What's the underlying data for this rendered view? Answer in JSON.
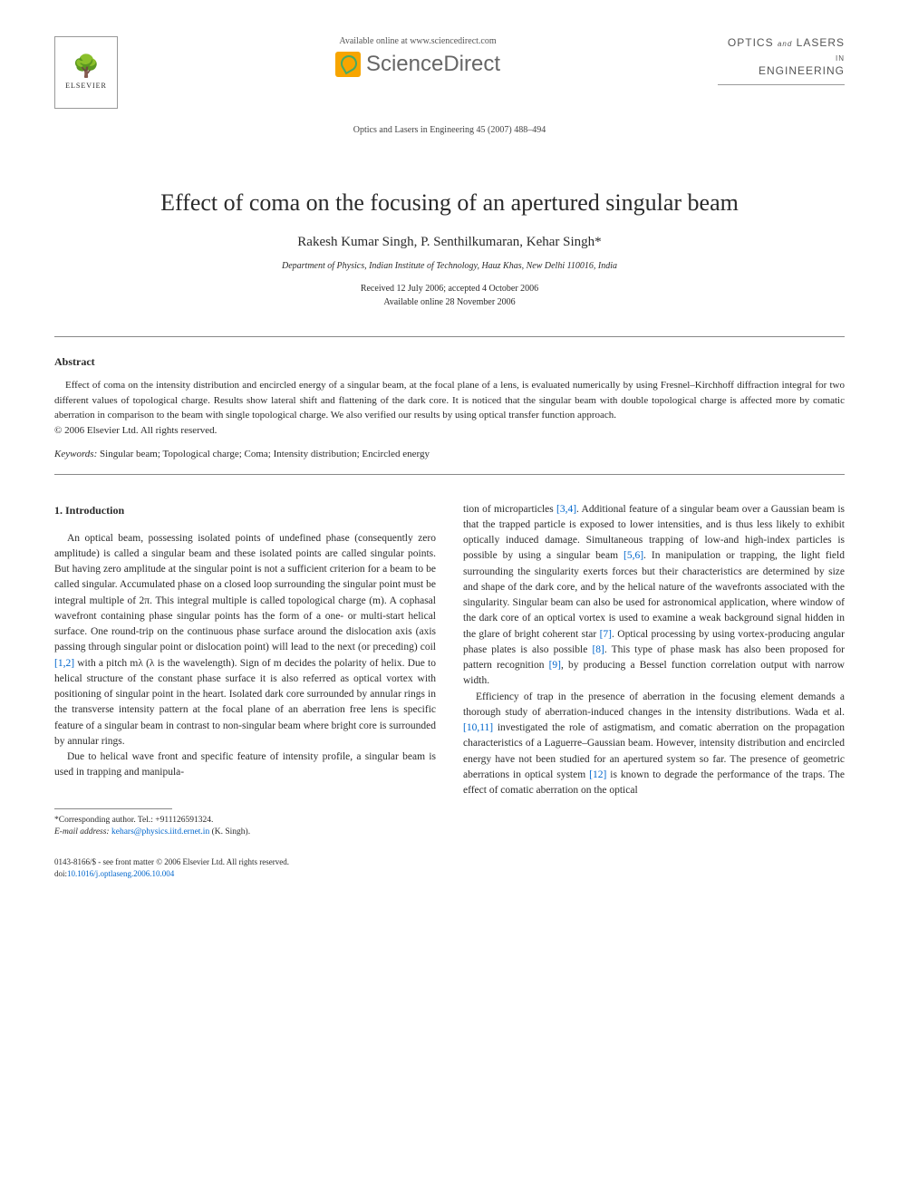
{
  "header": {
    "available_online": "Available online at www.sciencedirect.com",
    "sd_brand": "ScienceDirect",
    "elsevier_label": "ELSEVIER",
    "journal_name_line1": "OPTICS",
    "journal_name_and1": "and",
    "journal_name_line1b": "LASERS",
    "journal_name_line2": "ENGINEERING",
    "journal_ref": "Optics and Lasers in Engineering 45 (2007) 488–494"
  },
  "article": {
    "title": "Effect of coma on the focusing of an apertured singular beam",
    "authors": "Rakesh Kumar Singh, P. Senthilkumaran, Kehar Singh*",
    "affiliation": "Department of Physics, Indian Institute of Technology, Hauz Khas, New Delhi 110016, India",
    "received": "Received 12 July 2006; accepted 4 October 2006",
    "available": "Available online 28 November 2006"
  },
  "abstract": {
    "heading": "Abstract",
    "text": "Effect of coma on the intensity distribution and encircled energy of a singular beam, at the focal plane of a lens, is evaluated numerically by using Fresnel–Kirchhoff diffraction integral for two different values of topological charge. Results show lateral shift and flattening of the dark core. It is noticed that the singular beam with double topological charge is affected more by comatic aberration in comparison to the beam with single topological charge. We also verified our results by using optical transfer function approach.",
    "copyright": "© 2006 Elsevier Ltd. All rights reserved.",
    "keywords_label": "Keywords:",
    "keywords": " Singular beam; Topological charge; Coma; Intensity distribution; Encircled energy"
  },
  "body": {
    "section_heading": "1. Introduction",
    "col1_p1": "An optical beam, possessing isolated points of undefined phase (consequently zero amplitude) is called a singular beam and these isolated points are called singular points. But having zero amplitude at the singular point is not a sufficient criterion for a beam to be called singular. Accumulated phase on a closed loop surrounding the singular point must be integral multiple of 2π. This integral multiple is called topological charge (m). A cophasal wavefront containing phase singular points has the form of a one- or multi-start helical surface. One round-trip on the continuous phase surface around the dislocation axis (axis passing through singular point or dislocation point) will lead to the next (or preceding) coil ",
    "col1_cite1": "[1,2]",
    "col1_p1b": " with a pitch mλ (λ is the wavelength). Sign of m decides the polarity of helix. Due to helical structure of the constant phase surface it is also referred as optical vortex with positioning of singular point in the heart. Isolated dark core surrounded by annular rings in the transverse intensity pattern at the focal plane of an aberration free lens is specific feature of a singular beam in contrast to non-singular beam where bright core is surrounded by annular rings.",
    "col1_p2": "Due to helical wave front and specific feature of intensity profile, a singular beam is used in trapping and manipula-",
    "col2_p1a": "tion of microparticles ",
    "col2_cite1": "[3,4]",
    "col2_p1b": ". Additional feature of a singular beam over a Gaussian beam is that the trapped particle is exposed to lower intensities, and is thus less likely to exhibit optically induced damage. Simultaneous trapping of low-and high-index particles is possible by using a singular beam ",
    "col2_cite2": "[5,6]",
    "col2_p1c": ". In manipulation or trapping, the light field surrounding the singularity exerts forces but their characteristics are determined by size and shape of the dark core, and by the helical nature of the wavefronts associated with the singularity. Singular beam can also be used for astronomical application, where window of the dark core of an optical vortex is used to examine a weak background signal hidden in the glare of bright coherent star ",
    "col2_cite3": "[7]",
    "col2_p1d": ". Optical processing by using vortex-producing angular phase plates is also possible ",
    "col2_cite4": "[8]",
    "col2_p1e": ". This type of phase mask has also been proposed for pattern recognition ",
    "col2_cite5": "[9]",
    "col2_p1f": ", by producing a Bessel function correlation output with narrow width.",
    "col2_p2a": "Efficiency of trap in the presence of aberration in the focusing element demands a thorough study of aberration-induced changes in the intensity distributions. Wada et al. ",
    "col2_cite6": "[10,11]",
    "col2_p2b": " investigated the role of astigmatism, and comatic aberration on the propagation characteristics of a Laguerre–Gaussian beam. However, intensity distribution and encircled energy have not been studied for an apertured system so far. The presence of geometric aberrations in optical system ",
    "col2_cite7": "[12]",
    "col2_p2c": " is known to degrade the performance of the traps. The effect of comatic aberration on the optical"
  },
  "footnote": {
    "corr_author": "*Corresponding author. Tel.: +911126591324.",
    "email_label": "E-mail address:",
    "email": " kehars@physics.iitd.ernet.in",
    "email_name": " (K. Singh)."
  },
  "footer": {
    "front_matter": "0143-8166/$ - see front matter © 2006 Elsevier Ltd. All rights reserved.",
    "doi_label": "doi:",
    "doi": "10.1016/j.optlaseng.2006.10.004"
  },
  "colors": {
    "link": "#0066cc",
    "text": "#2a2a2a",
    "muted": "#555555",
    "rule": "#888888"
  }
}
